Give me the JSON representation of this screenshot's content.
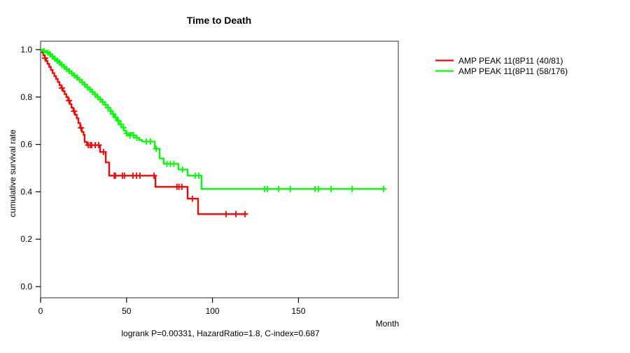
{
  "figure": {
    "title": "Time to Death",
    "footer": "logrank P=0.00331, HazardRatio=1.8, C-index=0.687",
    "stats": {
      "logrank_p": "0.00331",
      "hazard_ratio": "1.8",
      "c_index": "0.687"
    }
  },
  "colors": {
    "series_red": "#ff0000",
    "series_green": "#00ff00",
    "box": "#7a7a7a",
    "text": "#000000",
    "background": "#ffffff"
  },
  "chart_data": {
    "type": "line",
    "subtype": "kaplan-meier-step-survival",
    "title": "Time to Death",
    "xlabel": "Month",
    "ylabel": "cumulative survival rate",
    "xlim": [
      0,
      208
    ],
    "ylim": [
      0,
      1
    ],
    "xticks": [
      0,
      50,
      100,
      150
    ],
    "xtick_labels": [
      "0",
      "50",
      "100",
      "150"
    ],
    "yticks": [
      0.0,
      0.2,
      0.4,
      0.6,
      0.8,
      1.0
    ],
    "ytick_labels": [
      "0.0",
      "0.2",
      "0.4",
      "0.6",
      "0.8",
      "1.0"
    ],
    "grid": false,
    "legend_position": "right-outside",
    "series": [
      {
        "id": "red",
        "name": "AMP PEAK 11(8P11 (40/81)",
        "color": "#ff0000",
        "events_over_n": "40/81",
        "end_month": 120,
        "points": [
          [
            0,
            1.0
          ],
          [
            0.8,
            0.988
          ],
          [
            1.6,
            0.976
          ],
          [
            2.4,
            0.964
          ],
          [
            3.2,
            0.952
          ],
          [
            4,
            0.94
          ],
          [
            5,
            0.927
          ],
          [
            6,
            0.914
          ],
          [
            7,
            0.901
          ],
          [
            8,
            0.888
          ],
          [
            9,
            0.876
          ],
          [
            10,
            0.863
          ],
          [
            11,
            0.85
          ],
          [
            12,
            0.838
          ],
          [
            13,
            0.825
          ],
          [
            14,
            0.812
          ],
          [
            15,
            0.8
          ],
          [
            16,
            0.785
          ],
          [
            17,
            0.77
          ],
          [
            18,
            0.755
          ],
          [
            19,
            0.74
          ],
          [
            20,
            0.725
          ],
          [
            21,
            0.71
          ],
          [
            22,
            0.69
          ],
          [
            23,
            0.67
          ],
          [
            24,
            0.653
          ],
          [
            25,
            0.64
          ],
          [
            25.6,
            0.61
          ],
          [
            27,
            0.597
          ],
          [
            34.6,
            0.568
          ],
          [
            37.9,
            0.524
          ],
          [
            39.9,
            0.468
          ],
          [
            66.8,
            0.421
          ],
          [
            85.5,
            0.371
          ],
          [
            91.6,
            0.306
          ]
        ],
        "censor_months": [
          2.6,
          12.4,
          16.5,
          19.5,
          23.5,
          27.7,
          28.9,
          29.7,
          31.8,
          33.8,
          36.6,
          42.8,
          43.6,
          47.6,
          48.8,
          53.7,
          55.8,
          57.8,
          66,
          79.3,
          80.5,
          82.2,
          88.3,
          107.9,
          113.6,
          118.9
        ]
      },
      {
        "id": "green",
        "name": "AMP PEAK 11(8P11 (58/176)",
        "color": "#00ff00",
        "events_over_n": "58/176",
        "end_month": 200.3,
        "points": [
          [
            0,
            1.0
          ],
          [
            1.5,
            0.994
          ],
          [
            3,
            0.988
          ],
          [
            4.5,
            0.981
          ],
          [
            6,
            0.971
          ],
          [
            7.5,
            0.962
          ],
          [
            9,
            0.953
          ],
          [
            10.5,
            0.945
          ],
          [
            12,
            0.936
          ],
          [
            13.5,
            0.927
          ],
          [
            15,
            0.918
          ],
          [
            16.5,
            0.909
          ],
          [
            18,
            0.9
          ],
          [
            19.5,
            0.891
          ],
          [
            21,
            0.882
          ],
          [
            22.5,
            0.873
          ],
          [
            24,
            0.862
          ],
          [
            25.5,
            0.852
          ],
          [
            27,
            0.842
          ],
          [
            28.5,
            0.832
          ],
          [
            30,
            0.821
          ],
          [
            31.5,
            0.81
          ],
          [
            33,
            0.8
          ],
          [
            34.5,
            0.79
          ],
          [
            36,
            0.779
          ],
          [
            37.5,
            0.768
          ],
          [
            39,
            0.755
          ],
          [
            40.5,
            0.741
          ],
          [
            41.8,
            0.728
          ],
          [
            43,
            0.714
          ],
          [
            44.3,
            0.7
          ],
          [
            45.6,
            0.685
          ],
          [
            47,
            0.671
          ],
          [
            48.4,
            0.658
          ],
          [
            49.7,
            0.647
          ],
          [
            51,
            0.637
          ],
          [
            52.4,
            0.648
          ],
          [
            52.4,
            0.648
          ],
          [
            54,
            0.638
          ],
          [
            55.7,
            0.628
          ],
          [
            57.3,
            0.619
          ],
          [
            59,
            0.612
          ],
          [
            66.4,
            0.582
          ],
          [
            69.2,
            0.541
          ],
          [
            71.6,
            0.518
          ],
          [
            80.2,
            0.494
          ],
          [
            85.5,
            0.468
          ],
          [
            93.6,
            0.412
          ]
        ],
        "censor_months": [
          2,
          4.2,
          5.5,
          7,
          8.2,
          9.8,
          11,
          12.3,
          13.8,
          15.2,
          16.7,
          18.2,
          19.7,
          21.2,
          22.7,
          24.2,
          25.7,
          27.2,
          28.7,
          30.2,
          31.7,
          33.2,
          34.7,
          36.2,
          37.7,
          39.2,
          40.7,
          42.2,
          43.7,
          45.2,
          46.7,
          48.2,
          50,
          52,
          54,
          56,
          61.5,
          63.9,
          67.2,
          73.5,
          75.5,
          77.5,
          82.5,
          90,
          92,
          130.3,
          131.9,
          138.4,
          145.3,
          159.6,
          161.6,
          169,
          181.2,
          199.5
        ]
      }
    ]
  }
}
